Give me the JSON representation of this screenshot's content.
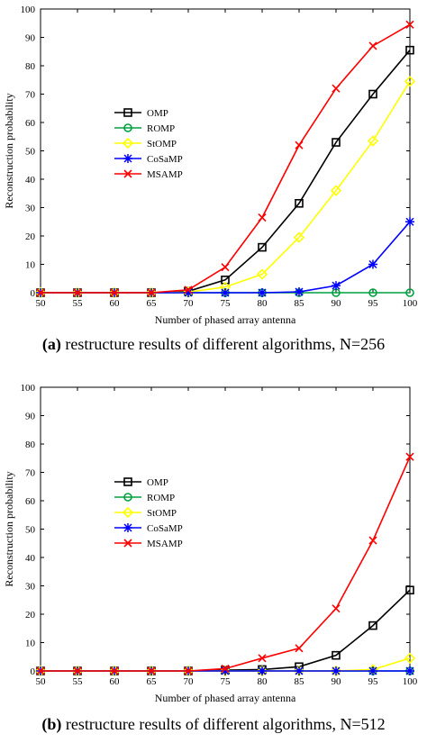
{
  "chart_data": [
    {
      "type": "line",
      "caption_letter": "(a)",
      "caption_text": " restructure results of different algorithms, N=256",
      "xlabel": "Number of phased array antenna",
      "ylabel": "Reconstruction probability",
      "xlim": [
        50,
        100
      ],
      "ylim": [
        0,
        100
      ],
      "xticks": [
        50,
        55,
        60,
        65,
        70,
        75,
        80,
        85,
        90,
        95,
        100
      ],
      "yticks": [
        0,
        10,
        20,
        30,
        40,
        50,
        60,
        70,
        80,
        90,
        100
      ],
      "legend_position": "center-left",
      "x": [
        50,
        55,
        60,
        65,
        70,
        75,
        80,
        85,
        90,
        95,
        100
      ],
      "series": [
        {
          "name": "OMP",
          "color": "#000000",
          "marker": "square",
          "values": [
            0,
            0,
            0,
            0,
            0.5,
            4.5,
            16,
            31.5,
            53,
            70,
            85.5
          ]
        },
        {
          "name": "ROMP",
          "color": "#00a040",
          "marker": "circle",
          "values": [
            0,
            0,
            0,
            0,
            0,
            0,
            0,
            0,
            0,
            0,
            0
          ]
        },
        {
          "name": "StOMP",
          "color": "#ffff00",
          "marker": "diamond",
          "values": [
            0,
            0,
            0,
            0,
            0.2,
            2,
            6.5,
            19.5,
            36,
            53.5,
            74.5
          ]
        },
        {
          "name": "CoSaMP",
          "color": "#0000ff",
          "marker": "star",
          "values": [
            0,
            0,
            0,
            0,
            0,
            0,
            0,
            0.3,
            2.5,
            10,
            25
          ]
        },
        {
          "name": "MSAMP",
          "color": "#ff0000",
          "marker": "x",
          "values": [
            0,
            0,
            0,
            0,
            1,
            9,
            26.5,
            52,
            72,
            87,
            94.5
          ]
        }
      ]
    },
    {
      "type": "line",
      "caption_letter": "(b)",
      "caption_text": " restructure results of different algorithms, N=512",
      "xlabel": "Number of phased array antenna",
      "ylabel": "Reconstruction probability",
      "xlim": [
        50,
        100
      ],
      "ylim": [
        0,
        100
      ],
      "xticks": [
        50,
        55,
        60,
        65,
        70,
        75,
        80,
        85,
        90,
        95,
        100
      ],
      "yticks": [
        0,
        10,
        20,
        30,
        40,
        50,
        60,
        70,
        80,
        90,
        100
      ],
      "legend_position": "center-left",
      "x": [
        50,
        55,
        60,
        65,
        70,
        75,
        80,
        85,
        90,
        95,
        100
      ],
      "series": [
        {
          "name": "OMP",
          "color": "#000000",
          "marker": "square",
          "values": [
            0,
            0,
            0,
            0,
            0,
            0.3,
            0.5,
            1.5,
            5.5,
            16,
            28.5
          ]
        },
        {
          "name": "ROMP",
          "color": "#00a040",
          "marker": "circle",
          "values": [
            0,
            0,
            0,
            0,
            0,
            0,
            0,
            0,
            0,
            0,
            0
          ]
        },
        {
          "name": "StOMP",
          "color": "#ffff00",
          "marker": "diamond",
          "values": [
            0,
            0,
            0,
            0,
            0,
            0,
            0,
            0,
            0,
            0.5,
            4.5
          ]
        },
        {
          "name": "CoSaMP",
          "color": "#0000ff",
          "marker": "star",
          "values": [
            0,
            0,
            0,
            0,
            0,
            0,
            0,
            0,
            0,
            0,
            0
          ]
        },
        {
          "name": "MSAMP",
          "color": "#ff0000",
          "marker": "x",
          "values": [
            0,
            0,
            0,
            0,
            0,
            0.8,
            4.5,
            8,
            22,
            46,
            75.5
          ]
        }
      ]
    }
  ]
}
